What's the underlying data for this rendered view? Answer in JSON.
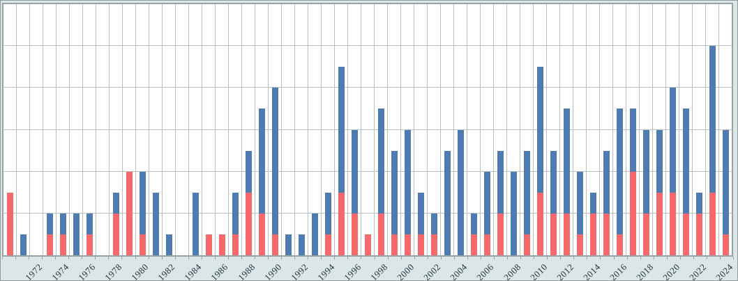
{
  "colors": {
    "background": "#dbe7e7",
    "plot_background": "#ffffff",
    "frame": "#98a2a2",
    "gridline": "#b9bfbf",
    "series_red": "#f5696b",
    "series_blue": "#4e7cb0",
    "axis_label": "#24303f"
  },
  "chart_data": {
    "type": "bar",
    "stacked": true,
    "title": "",
    "xlabel": "",
    "ylabel": "",
    "legend": "none",
    "grid": true,
    "ylim": [
      0,
      12
    ],
    "y_gridline_step": 2,
    "y_axis_labels_visible": false,
    "x_label_rotation_deg": 45,
    "x_label_step": 2,
    "categories": [
      1970,
      1971,
      1972,
      1973,
      1974,
      1975,
      1976,
      1977,
      1978,
      1979,
      1980,
      1981,
      1982,
      1983,
      1984,
      1985,
      1986,
      1987,
      1988,
      1989,
      1990,
      1991,
      1992,
      1993,
      1994,
      1995,
      1996,
      1997,
      1998,
      1999,
      2000,
      2001,
      2002,
      2003,
      2004,
      2005,
      2006,
      2007,
      2008,
      2009,
      2010,
      2011,
      2012,
      2013,
      2014,
      2015,
      2016,
      2017,
      2018,
      2019,
      2020,
      2021,
      2022,
      2023,
      2024
    ],
    "x_tick_labels_shown": [
      "1972",
      "1974",
      "1976",
      "1978",
      "1980",
      "1982",
      "1984",
      "1986",
      "1988",
      "1990",
      "1992",
      "1994",
      "1996",
      "1998",
      "2000",
      "2002",
      "2004",
      "2006",
      "2008",
      "2010",
      "2012",
      "2014",
      "2016",
      "2018",
      "2020",
      "2022",
      "2024"
    ],
    "series": [
      {
        "name": "red",
        "color": "#f5696b",
        "values": [
          3,
          0,
          0,
          1,
          1,
          0,
          1,
          0,
          2,
          4,
          1,
          0,
          0,
          0,
          0,
          1,
          1,
          1,
          3,
          2,
          1,
          0,
          0,
          0,
          1,
          3,
          2,
          1,
          2,
          1,
          1,
          1,
          1,
          0,
          0,
          1,
          1,
          2,
          0,
          1,
          3,
          2,
          2,
          1,
          2,
          2,
          1,
          4,
          2,
          3,
          3,
          2,
          2,
          3,
          1
        ]
      },
      {
        "name": "blue",
        "color": "#4e7cb0",
        "values": [
          0,
          1,
          0,
          1,
          1,
          2,
          1,
          0,
          1,
          0,
          3,
          3,
          1,
          0,
          3,
          0,
          0,
          2,
          2,
          5,
          7,
          1,
          1,
          2,
          2,
          6,
          4,
          0,
          5,
          4,
          5,
          2,
          1,
          5,
          6,
          1,
          3,
          3,
          4,
          4,
          6,
          3,
          5,
          3,
          1,
          3,
          6,
          3,
          4,
          3,
          5,
          5,
          1,
          7,
          5
        ]
      }
    ]
  }
}
